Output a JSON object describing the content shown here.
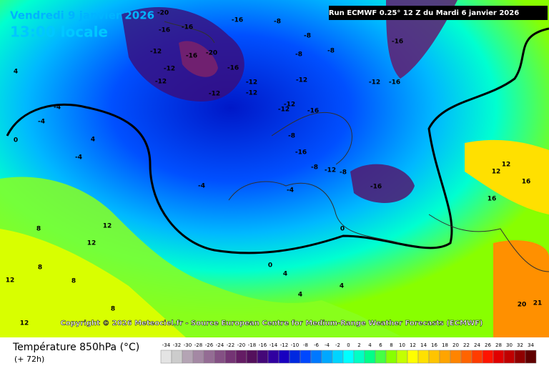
{
  "header": {
    "date": "Vendredi 9 janvier 2026",
    "time": "13:00 locale",
    "run": "Run ECMWF 0.25° 12 Z du Mardi 6 janvier 2026"
  },
  "copyright": "Copyright © 2026 Meteociel.fr - Source European Centre for Medium-Range Weather Forecasts (ECMWF)",
  "footer": {
    "title": "Température 850hPa (°C)",
    "lead": "(+ 72h)"
  },
  "legend": {
    "values": [
      -34,
      -32,
      -30,
      -28,
      -26,
      -24,
      -22,
      -20,
      -18,
      -16,
      -14,
      -12,
      -10,
      -8,
      -6,
      -4,
      -2,
      0,
      2,
      4,
      6,
      8,
      10,
      12,
      14,
      16,
      18,
      20,
      22,
      24,
      26,
      28,
      30,
      32,
      34
    ],
    "colors": [
      "#e4e4e4",
      "#cccccc",
      "#b4a4b4",
      "#a488a4",
      "#946c94",
      "#845084",
      "#743474",
      "#641c64",
      "#54105c",
      "#440878",
      "#3000a0",
      "#1800c0",
      "#0028e0",
      "#0048ff",
      "#0078ff",
      "#00a8ff",
      "#00d4ff",
      "#00ffff",
      "#00ffc4",
      "#00ff88",
      "#44ff44",
      "#88ff00",
      "#c4ff00",
      "#ffff00",
      "#ffe000",
      "#ffc400",
      "#ffa400",
      "#ff8400",
      "#ff6400",
      "#ff3c00",
      "#ff1400",
      "#e00000",
      "#c00000",
      "#900000",
      "#600000"
    ]
  },
  "map_labels": [
    -20,
    -16,
    -16,
    -12,
    -16,
    -8,
    -12,
    -16,
    -20,
    -16,
    -12,
    -12,
    -12,
    -12,
    -8,
    -8,
    -8,
    -16,
    -12,
    -16,
    -12,
    -12,
    -16,
    -12,
    -8,
    -16,
    -8,
    -12,
    -8,
    -16,
    4,
    -4,
    -4,
    0,
    4,
    -4,
    -4,
    0,
    0,
    -4,
    4,
    12,
    12,
    8,
    8,
    8,
    12,
    12,
    8,
    4,
    4,
    12,
    16,
    16,
    12,
    21,
    20
  ]
}
